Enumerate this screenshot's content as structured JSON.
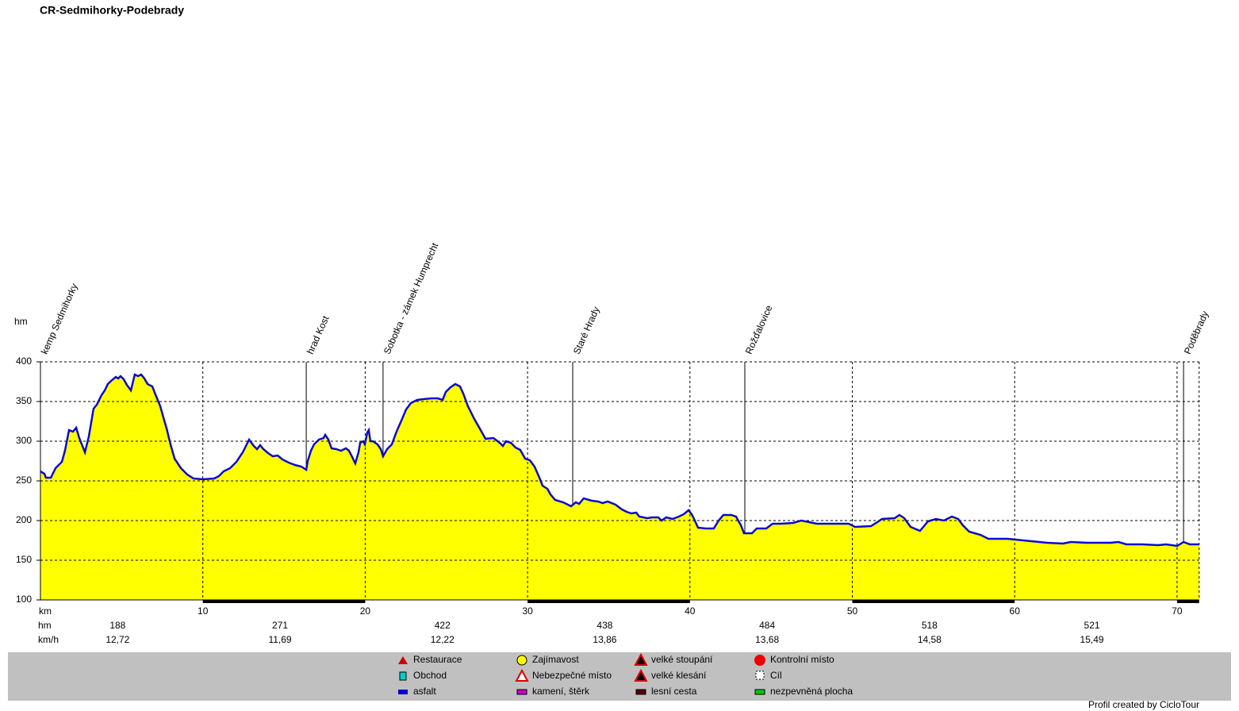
{
  "chart_data": {
    "type": "area",
    "title": "CR-Sedmihorky-Podebrady",
    "y_label": "hm",
    "x_label": "km",
    "line_color": "#0a0ad0",
    "fill_color": "#ffff00",
    "grid": true,
    "xlim": [
      0,
      71.36
    ],
    "xticks": [
      10,
      20,
      30,
      40,
      50,
      60,
      70
    ],
    "ylim": [
      100,
      400
    ],
    "yticks": [
      100,
      150,
      200,
      250,
      300,
      350,
      400
    ],
    "x": [
      0,
      0.24,
      0.34,
      0.64,
      0.93,
      1.32,
      1.51,
      1.76,
      2.0,
      2.2,
      2.39,
      2.74,
      2.98,
      3.27,
      3.47,
      3.76,
      3.96,
      4.15,
      4.35,
      4.64,
      4.79,
      4.93,
      5.13,
      5.32,
      5.57,
      5.81,
      6.01,
      6.2,
      6.4,
      6.6,
      6.89,
      7.08,
      7.38,
      7.57,
      7.77,
      8.01,
      8.26,
      8.65,
      9.04,
      9.43,
      10.01,
      10.7,
      10.99,
      11.28,
      11.68,
      12.07,
      12.46,
      12.85,
      13.14,
      13.34,
      13.53,
      13.73,
      14.02,
      14.31,
      14.61,
      14.9,
      15.29,
      15.68,
      16.07,
      16.37,
      16.46,
      16.66,
      16.85,
      17.15,
      17.44,
      17.54,
      17.73,
      17.93,
      18.22,
      18.51,
      18.81,
      19.0,
      19.2,
      19.39,
      19.59,
      19.69,
      19.88,
      19.98,
      20.13,
      20.22,
      20.32,
      20.47,
      20.76,
      20.96,
      21.1,
      21.35,
      21.64,
      21.93,
      22.23,
      22.52,
      22.81,
      23.2,
      23.59,
      24.08,
      24.47,
      24.77,
      24.96,
      25.26,
      25.55,
      25.84,
      26.04,
      26.33,
      26.72,
      27.11,
      27.41,
      27.9,
      28.28,
      28.48,
      28.67,
      28.97,
      29.26,
      29.55,
      29.85,
      30.14,
      30.43,
      30.73,
      30.92,
      31.22,
      31.41,
      31.7,
      32.19,
      32.49,
      32.68,
      32.97,
      33.17,
      33.46,
      33.95,
      34.34,
      34.63,
      34.93,
      35.42,
      35.81,
      36.1,
      36.39,
      36.69,
      36.88,
      37.37,
      37.66,
      38.05,
      38.25,
      38.54,
      38.93,
      39.32,
      39.62,
      39.91,
      40.11,
      40.3,
      40.5,
      40.99,
      41.47,
      41.77,
      42.06,
      42.55,
      42.84,
      43.14,
      43.33,
      43.82,
      44.11,
      44.7,
      45.09,
      45.58,
      46.36,
      46.85,
      47.34,
      47.82,
      48.8,
      49.78,
      50.17,
      51.15,
      51.54,
      51.83,
      52.61,
      52.9,
      53.2,
      53.59,
      54.17,
      54.66,
      55.15,
      55.64,
      56.13,
      56.52,
      56.81,
      57.2,
      57.89,
      58.38,
      59.55,
      60.04,
      61.02,
      62.0,
      62.97,
      63.46,
      64.43,
      64.92,
      65.9,
      66.39,
      66.88,
      67.86,
      68.83,
      69.32,
      70.01,
      70.4,
      70.79,
      71.36
    ],
    "values": [
      262,
      259,
      254,
      254,
      266,
      274,
      288,
      314,
      312,
      317,
      304,
      286,
      306,
      341,
      346,
      358,
      364,
      372,
      376,
      381,
      379,
      382,
      378,
      371,
      364,
      384,
      382,
      384,
      379,
      372,
      369,
      359,
      344,
      330,
      316,
      296,
      278,
      266,
      258,
      253,
      252,
      253,
      256,
      262,
      266,
      274,
      286,
      302,
      294,
      290,
      295,
      290,
      285,
      281,
      282,
      277,
      273,
      270,
      268,
      264,
      275,
      288,
      296,
      302,
      304,
      308,
      302,
      291,
      290,
      288,
      291,
      288,
      280,
      272,
      286,
      298,
      300,
      296,
      311,
      314,
      300,
      300,
      296,
      290,
      281,
      290,
      296,
      312,
      326,
      340,
      348,
      352,
      353,
      354,
      354,
      352,
      362,
      368,
      372,
      369,
      360,
      344,
      328,
      314,
      303,
      304,
      298,
      294,
      300,
      298,
      292,
      289,
      278,
      276,
      268,
      254,
      244,
      240,
      233,
      226,
      223,
      220,
      218,
      223,
      221,
      228,
      225,
      224,
      222,
      224,
      220,
      214,
      211,
      209,
      210,
      205,
      203,
      204,
      204,
      200,
      204,
      202,
      205,
      208,
      213,
      208,
      200,
      191,
      190,
      190,
      200,
      207,
      207,
      205,
      194,
      184,
      184,
      190,
      190,
      196,
      196,
      197,
      200,
      198,
      196,
      196,
      196,
      192,
      193,
      198,
      202,
      203,
      207,
      203,
      192,
      187,
      199,
      202,
      200,
      205,
      202,
      194,
      186,
      182,
      177,
      177,
      176,
      174,
      172,
      171,
      173,
      172,
      172,
      172,
      173,
      170,
      170,
      169,
      170,
      168,
      173,
      170,
      170
    ],
    "waypoints": [
      {
        "label": "kemp Sedmihorky",
        "x": 0
      },
      {
        "label": "hrad Kost",
        "x": 16.37
      },
      {
        "label": "Sobotka - zámek Humprecht",
        "x": 21.1
      },
      {
        "label": "Staré Hrady",
        "x": 32.78
      },
      {
        "label": "Rožďalovice",
        "x": 43.38
      },
      {
        "label": "Poděbrady",
        "x": 70.4
      }
    ],
    "segment_rows": [
      {
        "label": "hm",
        "color": "#c00000",
        "values": [
          188,
          271,
          422,
          438,
          484,
          518,
          521
        ]
      },
      {
        "label": "km/h",
        "color": "#000000",
        "values": [
          "12,72",
          "11,69",
          "12,22",
          "13,86",
          "13,68",
          "14,58",
          "15,49"
        ]
      }
    ]
  },
  "legend": {
    "items": [
      "Restaurace",
      "Obchod",
      "asfalt",
      "Zajímavost",
      "Nebezpečné místo",
      "kamení, štěrk",
      "velké stoupání",
      "velké klesání",
      "lesní cesta",
      "Kontrolní místo",
      "Cíl",
      "nezpevněná plocha"
    ]
  },
  "footer": "Profil created by CicloTour"
}
